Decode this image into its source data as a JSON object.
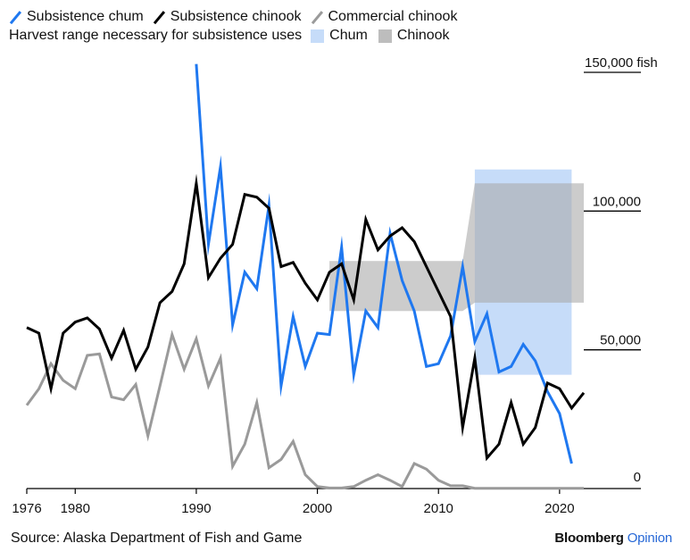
{
  "legend": {
    "series": [
      {
        "label": "Subsistence chum",
        "color": "#1f78f0"
      },
      {
        "label": "Subsistence chinook",
        "color": "#000000"
      },
      {
        "label": "Commercial chinook",
        "color": "#9a9a9a"
      }
    ],
    "ranges_title": "Harvest range necessary for subsistence uses",
    "ranges": [
      {
        "label": "Chum",
        "color": "#c6dcf9"
      },
      {
        "label": "Chinook",
        "color": "#c4c4c4"
      }
    ]
  },
  "footer": {
    "source": "Source: Alaska Department of Fish and Game",
    "brand": "Bloomberg",
    "brand_suffix": "Opinion"
  },
  "chart_data": {
    "type": "line",
    "xlim": [
      1976,
      2026
    ],
    "ylim": [
      0,
      150000
    ],
    "x_ticks": [
      {
        "value": 1976,
        "label": "1976"
      },
      {
        "value": 1980,
        "label": "1980"
      },
      {
        "value": 1990,
        "label": "1990"
      },
      {
        "value": 2000,
        "label": "2000"
      },
      {
        "value": 2010,
        "label": "2010"
      },
      {
        "value": 2020,
        "label": "2020"
      }
    ],
    "y_ticks": [
      {
        "value": 150000,
        "label": "150,000 fish"
      },
      {
        "value": 100000,
        "label": "100,000"
      },
      {
        "value": 50000,
        "label": "50,000"
      },
      {
        "value": 0,
        "label": "0"
      }
    ],
    "ranges": [
      {
        "name": "Chum",
        "color": "#c6dcf9",
        "opacity": 1,
        "polygon": [
          [
            2013,
            115000
          ],
          [
            2021,
            115000
          ],
          [
            2021,
            41000
          ],
          [
            2013,
            41000
          ]
        ]
      },
      {
        "name": "Chinook",
        "color": "#aaaaaa",
        "opacity": 0.6,
        "polygon": [
          [
            2001,
            82000
          ],
          [
            2012,
            82000
          ],
          [
            2013,
            110000
          ],
          [
            2022,
            110000
          ],
          [
            2022,
            67000
          ],
          [
            2013,
            67000
          ],
          [
            2012,
            64000
          ],
          [
            2001,
            64000
          ]
        ]
      }
    ],
    "series": [
      {
        "name": "Commercial chinook",
        "color": "#9a9a9a",
        "x": [
          1976,
          1977,
          1978,
          1979,
          1980,
          1981,
          1982,
          1983,
          1984,
          1985,
          1986,
          1987,
          1988,
          1989,
          1990,
          1991,
          1992,
          1993,
          1994,
          1995,
          1996,
          1997,
          1998,
          1999,
          2000,
          2001,
          2002,
          2003,
          2004,
          2005,
          2006,
          2007,
          2008,
          2009,
          2010,
          2011,
          2012,
          2013,
          2014,
          2015,
          2016,
          2017,
          2018,
          2019,
          2020,
          2021,
          2022
        ],
        "y": [
          30000,
          36000,
          45000,
          39000,
          36000,
          48000,
          48500,
          33000,
          32000,
          37500,
          19000,
          37000,
          55500,
          43000,
          54000,
          37000,
          47000,
          8000,
          16000,
          31000,
          7500,
          10500,
          17000,
          5000,
          700,
          200,
          200,
          700,
          3000,
          5000,
          3000,
          700,
          9000,
          7000,
          3000,
          1000,
          1000,
          100,
          100,
          100,
          100,
          100,
          100,
          100,
          100,
          100,
          100
        ]
      },
      {
        "name": "Subsistence chum",
        "color": "#1f78f0",
        "x": [
          1990,
          1991,
          1992,
          1993,
          1994,
          1995,
          1996,
          1997,
          1998,
          1999,
          2000,
          2001,
          2002,
          2003,
          2004,
          2005,
          2006,
          2007,
          2008,
          2009,
          2010,
          2011,
          2012,
          2013,
          2014,
          2015,
          2016,
          2017,
          2018,
          2019,
          2020,
          2021
        ],
        "y": [
          153000,
          88000,
          116000,
          59000,
          78000,
          72000,
          102000,
          37000,
          62000,
          44000,
          56000,
          55500,
          87000,
          41000,
          64000,
          58000,
          92000,
          75000,
          64000,
          44000,
          45000,
          55000,
          80000,
          53000,
          63000,
          42000,
          44000,
          52000,
          46000,
          35000,
          27000,
          9000
        ]
      },
      {
        "name": "Subsistence chinook",
        "color": "#000000",
        "x": [
          1976,
          1977,
          1978,
          1979,
          1980,
          1981,
          1982,
          1983,
          1984,
          1985,
          1986,
          1987,
          1988,
          1989,
          1990,
          1991,
          1992,
          1993,
          1994,
          1995,
          1996,
          1997,
          1998,
          1999,
          2000,
          2001,
          2002,
          2003,
          2004,
          2005,
          2006,
          2007,
          2008,
          2009,
          2010,
          2011,
          2012,
          2013,
          2014,
          2015,
          2016,
          2017,
          2018,
          2019,
          2020,
          2021,
          2022
        ],
        "y": [
          58000,
          56000,
          36000,
          56000,
          60000,
          61500,
          57500,
          47000,
          57000,
          43000,
          51000,
          67000,
          71000,
          81000,
          110000,
          76000,
          83000,
          88000,
          106000,
          105000,
          101000,
          80000,
          81500,
          74000,
          68000,
          78000,
          81000,
          68000,
          97000,
          86000,
          91000,
          94000,
          89000,
          80000,
          71000,
          62000,
          22000,
          47000,
          11000,
          16000,
          31000,
          16000,
          22000,
          38000,
          36000,
          29000,
          34500
        ]
      }
    ]
  }
}
